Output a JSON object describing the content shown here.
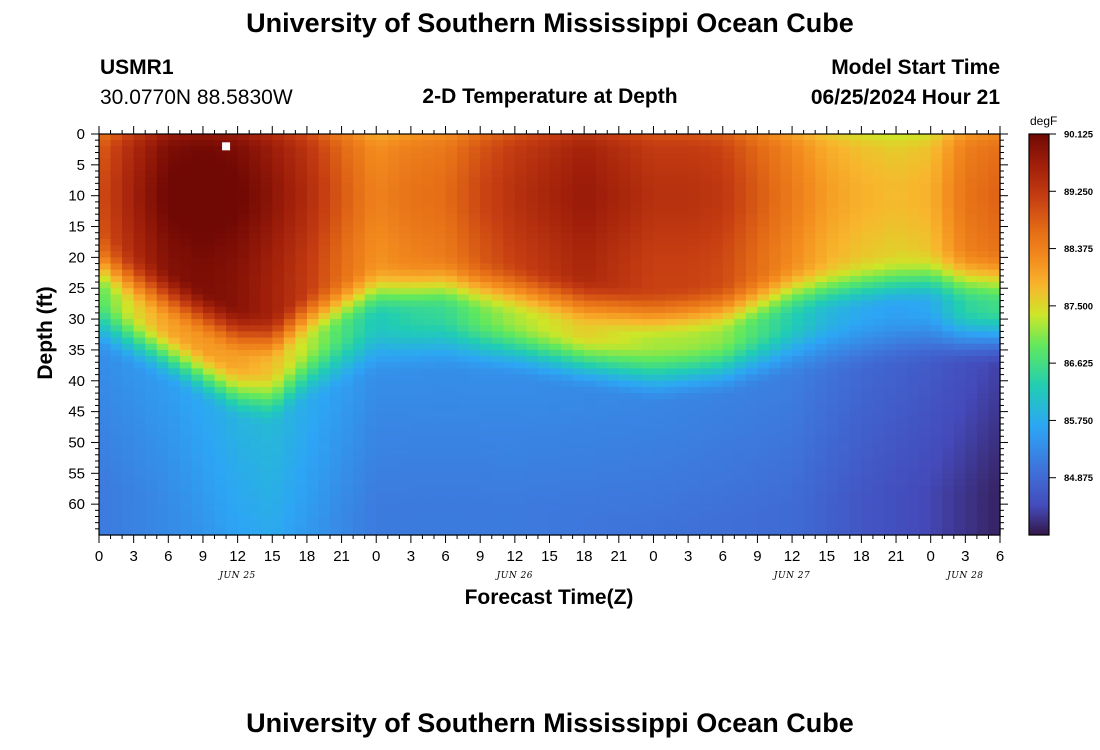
{
  "header": {
    "title": "University of Southern Mississippi Ocean Cube",
    "station": "USMR1",
    "coords": "30.0770N  88.5830W",
    "model_label": "Model Start Time",
    "model_time": "06/25/2024 Hour 21"
  },
  "footer": {
    "title": "University of Southern Mississippi Ocean Cube"
  },
  "chart_data": {
    "type": "heatmap",
    "title": "2-D Temperature at Depth",
    "xlabel": "Forecast Time(Z)",
    "ylabel": "Depth (ft)",
    "x_unit": "forecast hours from 2024-06-25 00Z",
    "x_range": [
      0,
      78
    ],
    "y_range": [
      0,
      65
    ],
    "x_tick_labels": [
      "0",
      "3",
      "6",
      "9",
      "12",
      "15",
      "18",
      "21",
      "0",
      "3",
      "6",
      "9",
      "12",
      "15",
      "18",
      "21",
      "0",
      "3",
      "6",
      "9",
      "12",
      "15",
      "18",
      "21",
      "0",
      "3",
      "6"
    ],
    "y_tick_labels": [
      "0",
      "5",
      "10",
      "15",
      "20",
      "25",
      "30",
      "35",
      "40",
      "45",
      "50",
      "55",
      "60"
    ],
    "date_labels": [
      {
        "label": "JUN 25",
        "hour": 12
      },
      {
        "label": "JUN 26",
        "hour": 36
      },
      {
        "label": "JUN 27",
        "hour": 60
      },
      {
        "label": "JUN 28",
        "hour": 75
      }
    ],
    "colorbar": {
      "unit": "degF",
      "min": 84.0,
      "max": 90.125,
      "tick_labels": [
        "90.125",
        "89.250",
        "88.375",
        "87.500",
        "86.625",
        "85.750",
        "84.875"
      ],
      "tick_values": [
        90.125,
        89.25,
        88.375,
        87.5,
        86.625,
        85.75,
        84.875
      ]
    },
    "marker": {
      "hour": 11,
      "depth_ft": 2
    },
    "thermocline_depth_ft": {
      "hours": [
        0,
        6,
        12,
        15,
        18,
        24,
        30,
        36,
        42,
        48,
        54,
        60,
        66,
        72,
        78
      ],
      "values": [
        26,
        31,
        37,
        38,
        34,
        30,
        29,
        30,
        32,
        34,
        33,
        30,
        29,
        28,
        28
      ]
    },
    "surface_temp_degF": {
      "hours": [
        0,
        3,
        6,
        9,
        12,
        15,
        18,
        21,
        24,
        27,
        30,
        33,
        36,
        39,
        42,
        45,
        48,
        51,
        54,
        57,
        60,
        63,
        66,
        69,
        72,
        75,
        78
      ],
      "values": [
        88.7,
        89.4,
        89.9,
        90.0,
        89.9,
        89.6,
        89.2,
        88.6,
        88.1,
        88.3,
        88.4,
        88.8,
        89.1,
        89.3,
        89.5,
        89.3,
        89.1,
        89.1,
        89.0,
        88.6,
        88.2,
        87.8,
        87.6,
        87.5,
        87.6,
        88.3,
        88.5
      ]
    },
    "deep_temp_degF": {
      "hours": [
        0,
        6,
        12,
        15,
        18,
        24,
        36,
        48,
        60,
        66,
        72,
        78
      ],
      "values": [
        85.1,
        85.3,
        85.6,
        85.7,
        85.5,
        85.1,
        85.1,
        85.0,
        84.9,
        84.6,
        84.4,
        84.1
      ]
    }
  }
}
